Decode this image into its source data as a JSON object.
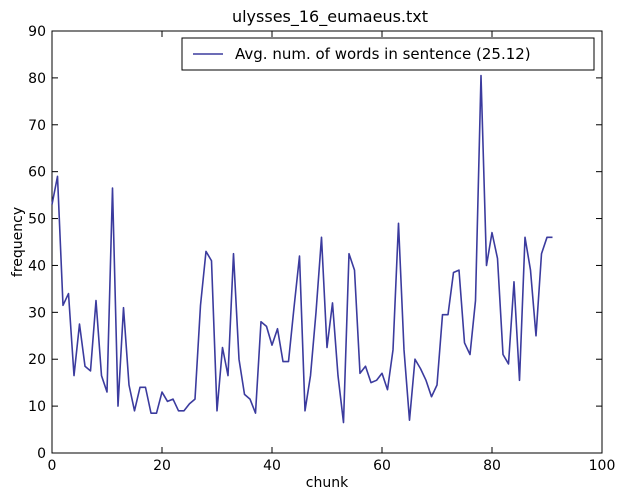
{
  "chart_data": {
    "type": "line",
    "title": "ulysses_16_eumaeus.txt",
    "xlabel": "chunk",
    "ylabel": "frequency",
    "xlim": [
      0,
      100
    ],
    "ylim": [
      0,
      90
    ],
    "xticks": [
      0,
      20,
      40,
      60,
      80,
      100
    ],
    "yticks": [
      0,
      10,
      20,
      30,
      40,
      50,
      60,
      70,
      80,
      90
    ],
    "grid": false,
    "legend_position": "top-right",
    "series": [
      {
        "name": "Avg. num. of words in sentence (25.12)",
        "color": "#3b3b9e",
        "x": [
          0,
          1,
          2,
          3,
          4,
          5,
          6,
          7,
          8,
          9,
          10,
          11,
          12,
          13,
          14,
          15,
          16,
          17,
          18,
          19,
          20,
          21,
          22,
          23,
          24,
          25,
          26,
          27,
          28,
          29,
          30,
          31,
          32,
          33,
          34,
          35,
          36,
          37,
          38,
          39,
          40,
          41,
          42,
          43,
          44,
          45,
          46,
          47,
          48,
          49,
          50,
          51,
          52,
          53,
          54,
          55,
          56,
          57,
          58,
          59,
          60,
          61,
          62,
          63,
          64,
          65,
          66,
          67,
          68,
          69,
          70,
          71,
          72,
          73,
          74,
          75,
          76,
          77,
          78,
          79,
          80,
          81,
          82,
          83,
          84,
          85,
          86,
          87,
          88,
          89,
          90,
          91
        ],
        "y": [
          53,
          59,
          31.5,
          34,
          16.5,
          27.5,
          18.5,
          17.5,
          32.5,
          16.5,
          13,
          56.5,
          10,
          31,
          14.5,
          9,
          14,
          14,
          8.5,
          8.5,
          13,
          11,
          11.5,
          9,
          9,
          10.5,
          11.5,
          31.5,
          43,
          41,
          9,
          22.5,
          16.5,
          42.5,
          20,
          12.5,
          11.5,
          8.5,
          28,
          27,
          23,
          26.5,
          19.5,
          19.5,
          31,
          42,
          9,
          16.5,
          30,
          46,
          22.5,
          32,
          16.5,
          6.5,
          42.5,
          39,
          17,
          18.5,
          15,
          15.5,
          17,
          13.5,
          22,
          49,
          22,
          7,
          20,
          18,
          15.5,
          12,
          14.5,
          29.5,
          29.5,
          38.5,
          39,
          23.5,
          21,
          32.5,
          80.5,
          40,
          47,
          41.5,
          21,
          19,
          36.5,
          15.5,
          46,
          39,
          25,
          42.5,
          46,
          46
        ]
      }
    ]
  }
}
